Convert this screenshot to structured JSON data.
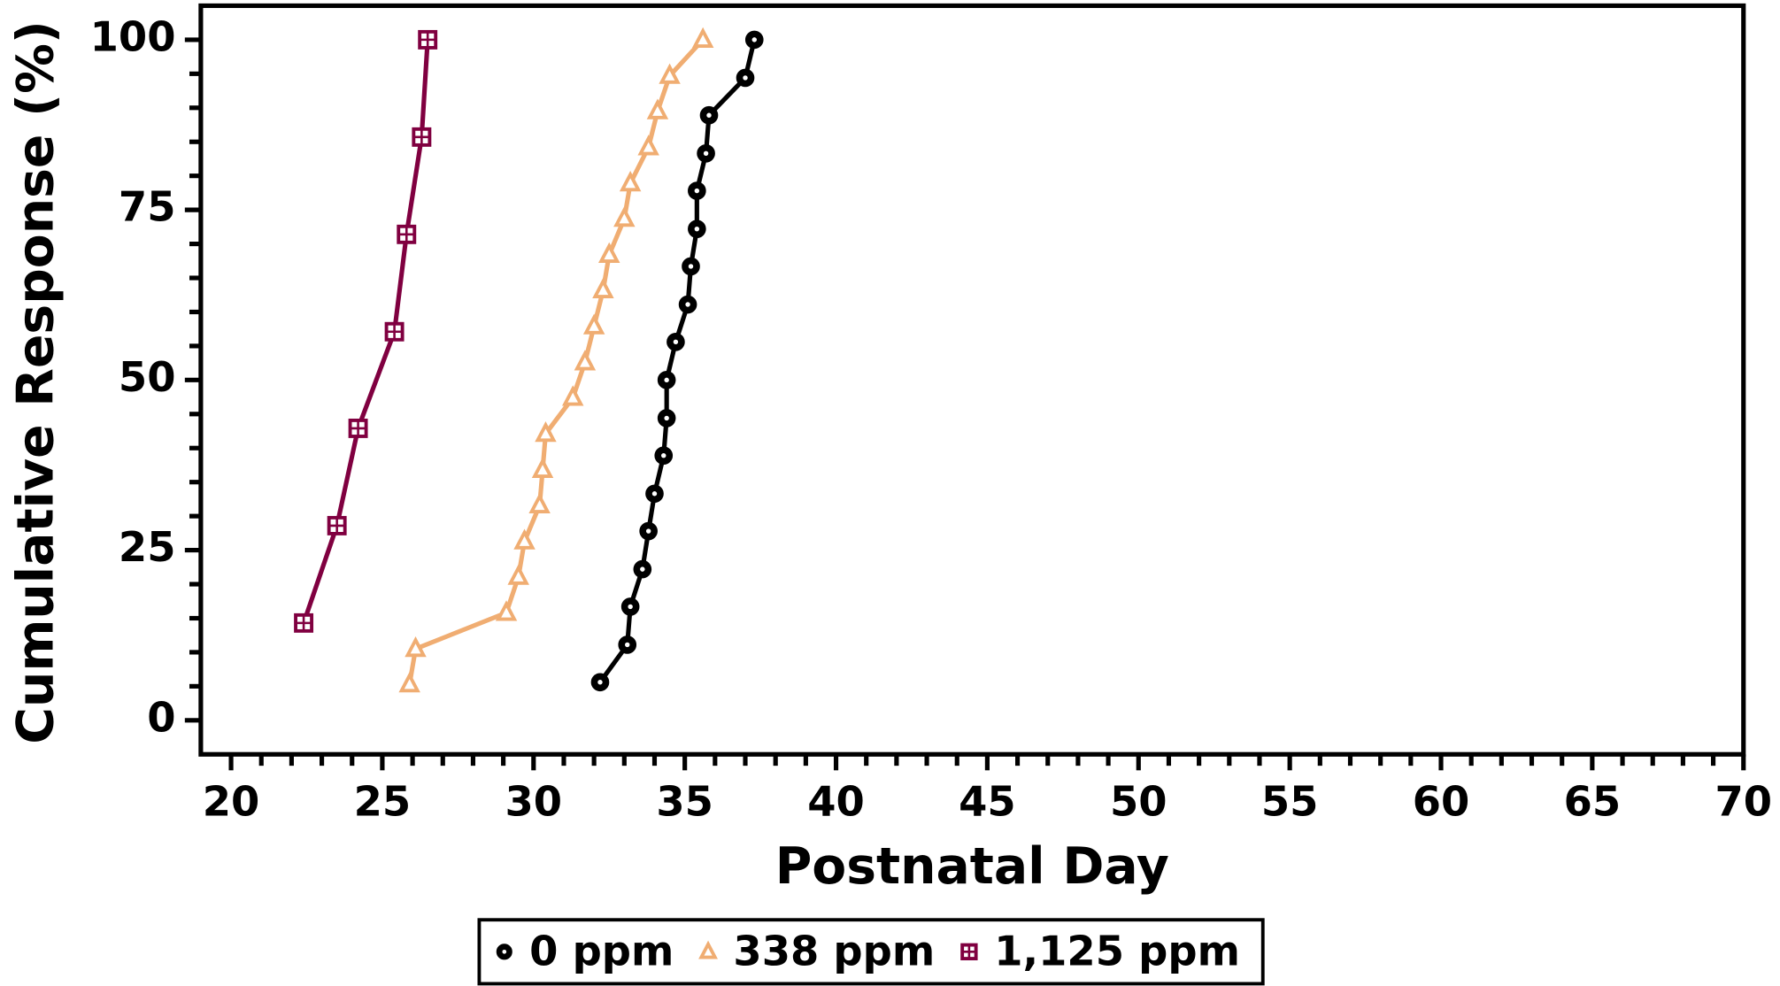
{
  "chart_data": {
    "type": "line",
    "xlabel": "Postnatal Day",
    "ylabel": "Cumulative Response (%)",
    "xlim": [
      19,
      70
    ],
    "xticks": [
      20,
      25,
      30,
      35,
      40,
      45,
      50,
      55,
      60,
      65,
      70
    ],
    "ylim": [
      -5,
      105
    ],
    "yticks": [
      0,
      25,
      50,
      75,
      100
    ],
    "legend": "bottom",
    "series": [
      {
        "name": "0 ppm",
        "color": "#000000",
        "marker": "circle",
        "x": [
          32.2,
          33.1,
          33.2,
          33.6,
          33.8,
          34.0,
          34.3,
          34.4,
          34.4,
          34.7,
          35.1,
          35.2,
          35.4,
          35.4,
          35.7,
          35.8,
          37.0,
          37.3
        ],
        "values": [
          5.6,
          11.1,
          16.7,
          22.2,
          27.8,
          33.3,
          38.9,
          44.4,
          50.0,
          55.6,
          61.1,
          66.7,
          72.2,
          77.8,
          83.3,
          88.9,
          94.4,
          100
        ]
      },
      {
        "name": "338 ppm",
        "color": "#f0ad72",
        "marker": "triangle",
        "x": [
          25.9,
          26.1,
          29.1,
          29.5,
          29.7,
          30.2,
          30.3,
          30.4,
          31.3,
          31.7,
          32.0,
          32.3,
          32.5,
          33.0,
          33.2,
          33.8,
          34.1,
          34.5,
          35.6
        ],
        "values": [
          5.3,
          10.5,
          15.8,
          21.1,
          26.3,
          31.6,
          36.8,
          42.1,
          47.4,
          52.6,
          57.9,
          63.2,
          68.4,
          73.7,
          78.9,
          84.2,
          89.5,
          94.7,
          100
        ]
      },
      {
        "name": "1,125 ppm",
        "color": "#800040",
        "marker": "square",
        "x": [
          22.4,
          23.5,
          24.2,
          25.4,
          25.8,
          26.3,
          26.5
        ],
        "values": [
          14.3,
          28.6,
          42.9,
          57.1,
          71.4,
          85.7,
          100
        ]
      }
    ]
  }
}
